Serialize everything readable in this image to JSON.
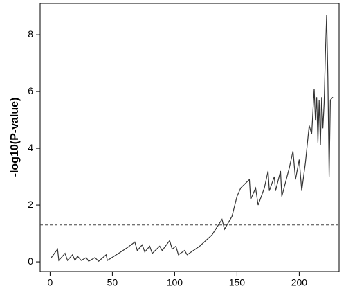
{
  "chart_data": {
    "type": "line",
    "y_label": "-log10(P-value)",
    "x": [
      1,
      6,
      7,
      12,
      14,
      18,
      20,
      22,
      25,
      29,
      31,
      36,
      39,
      45,
      46,
      55,
      62,
      68,
      70,
      74,
      76,
      80,
      82,
      88,
      90,
      96,
      98,
      101,
      103,
      108,
      110,
      120,
      130,
      138,
      140,
      146,
      150,
      153,
      160,
      161,
      165,
      167,
      172,
      175,
      176,
      180,
      181,
      185,
      186,
      192,
      195,
      197,
      200,
      202,
      205,
      208,
      210,
      212,
      213,
      214,
      215,
      216,
      217,
      218,
      219,
      220,
      221,
      222,
      223,
      224,
      225,
      227
    ],
    "values": [
      0.15,
      0.45,
      0.05,
      0.3,
      0.05,
      0.25,
      0.05,
      0.2,
      0.05,
      0.15,
      0.02,
      0.15,
      0.02,
      0.25,
      0.05,
      0.3,
      0.5,
      0.7,
      0.4,
      0.6,
      0.35,
      0.55,
      0.3,
      0.55,
      0.4,
      0.75,
      0.45,
      0.55,
      0.25,
      0.4,
      0.25,
      0.55,
      0.95,
      1.5,
      1.15,
      1.6,
      2.3,
      2.6,
      2.9,
      2.2,
      2.6,
      2.0,
      2.6,
      3.2,
      2.5,
      3.0,
      2.5,
      3.2,
      2.3,
      3.3,
      3.9,
      2.9,
      3.6,
      2.5,
      3.5,
      4.8,
      4.5,
      6.1,
      5.0,
      5.8,
      4.2,
      5.7,
      4.1,
      5.8,
      4.7,
      5.6,
      7.3,
      8.7,
      6.5,
      3.0,
      5.7,
      5.8
    ],
    "color": "#333333",
    "threshold": 1.3,
    "xlim": [
      -8,
      232
    ],
    "ylim": [
      -0.34,
      9.1
    ],
    "xticks": [
      0,
      50,
      100,
      150,
      200
    ],
    "yticks": [
      0,
      2,
      4,
      6,
      8
    ]
  }
}
